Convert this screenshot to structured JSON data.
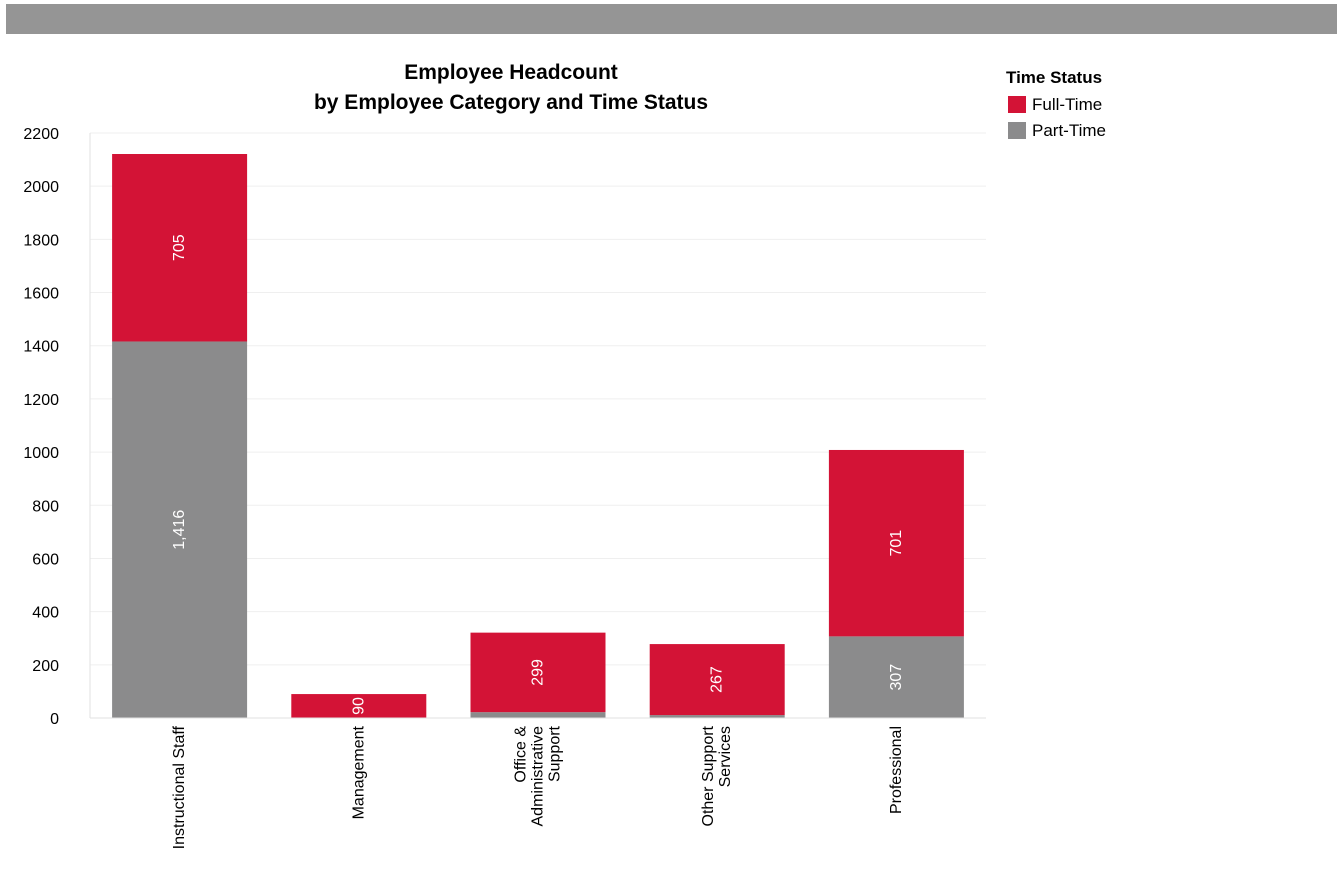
{
  "colors": {
    "full_time": "#d31336",
    "part_time": "#8b8b8c",
    "header_bar": "#959595",
    "gridline": "#efefef"
  },
  "chart_data": {
    "type": "bar",
    "stacked": true,
    "title": [
      "Employee Headcount",
      "by Employee Category and Time Status"
    ],
    "xlabel": "",
    "ylabel": "",
    "ylim": [
      0,
      2200
    ],
    "yticks": [
      0,
      200,
      400,
      600,
      800,
      1000,
      1200,
      1400,
      1600,
      1800,
      2000,
      2200
    ],
    "grid": true,
    "categories": [
      [
        "Instructional Staff"
      ],
      [
        "Management"
      ],
      [
        "Office &",
        "Administrative",
        "Support"
      ],
      [
        "Other Support",
        "Services"
      ],
      [
        "Professional"
      ]
    ],
    "series": [
      {
        "name": "Part-Time",
        "color": "#8b8b8c",
        "values": [
          1416,
          0,
          22,
          11,
          307
        ],
        "labels": [
          "1,416",
          "",
          "",
          "",
          "307"
        ]
      },
      {
        "name": "Full-Time",
        "color": "#d31336",
        "values": [
          705,
          90,
          299,
          267,
          701
        ],
        "labels": [
          "705",
          "90",
          "299",
          "267",
          "701"
        ]
      }
    ],
    "legend": {
      "title": "Time Status",
      "position": "top-right",
      "entries": [
        "Full-Time",
        "Part-Time"
      ]
    }
  }
}
